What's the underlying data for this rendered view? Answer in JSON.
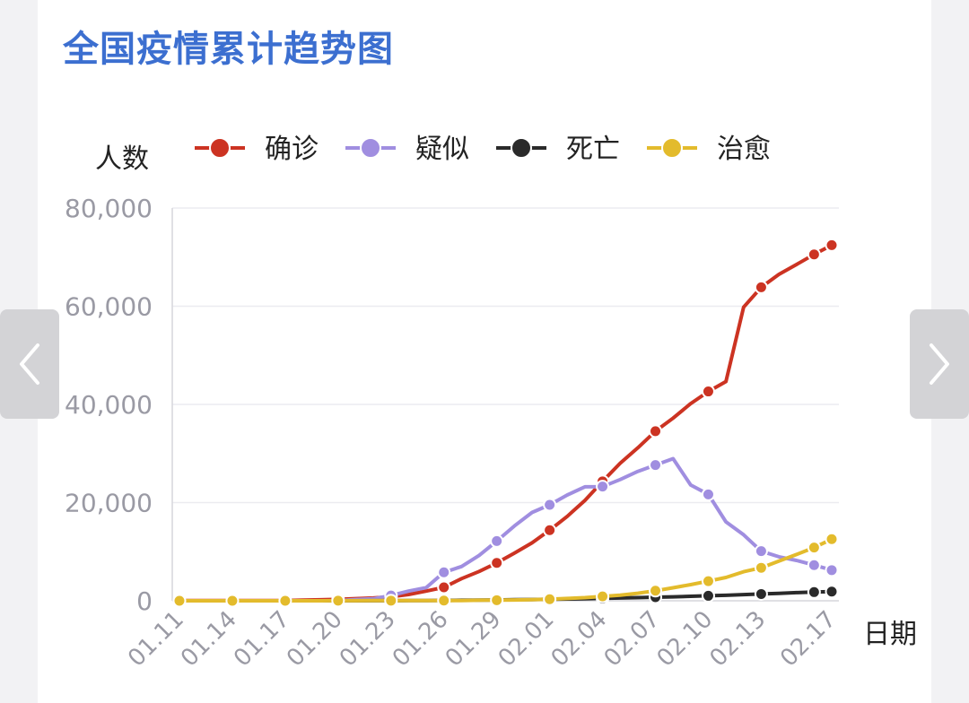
{
  "title": "全国疫情累计趋势图",
  "nav": {
    "prev_icon": "chevron-left-icon",
    "next_icon": "chevron-right-icon"
  },
  "chart_data": {
    "type": "line",
    "title": "全国疫情累计趋势图",
    "ylabel": "人数",
    "xlabel": "日期",
    "ylim": [
      0,
      80000
    ],
    "yticks": [
      0,
      20000,
      40000,
      60000,
      80000
    ],
    "ytick_labels": [
      "0",
      "20,000",
      "40,000",
      "60,000",
      "80,000"
    ],
    "xtick_labels": [
      "01.11",
      "01.14",
      "01.17",
      "01.20",
      "01.23",
      "01.26",
      "01.29",
      "02.01",
      "02.04",
      "02.07",
      "02.10",
      "02.13",
      "02.17"
    ],
    "grid": true,
    "legend_position": "top",
    "dates": [
      "01.11",
      "01.12",
      "01.13",
      "01.14",
      "01.15",
      "01.16",
      "01.17",
      "01.18",
      "01.19",
      "01.20",
      "01.21",
      "01.22",
      "01.23",
      "01.24",
      "01.25",
      "01.26",
      "01.27",
      "01.28",
      "01.29",
      "01.30",
      "01.31",
      "02.01",
      "02.02",
      "02.03",
      "02.04",
      "02.05",
      "02.06",
      "02.07",
      "02.08",
      "02.09",
      "02.10",
      "02.11",
      "02.12",
      "02.13",
      "02.14",
      "02.15",
      "02.16",
      "02.17"
    ],
    "series": [
      {
        "name": "确诊",
        "color": "#cc3322",
        "values": [
          41,
          41,
          41,
          41,
          41,
          45,
          62,
          121,
          198,
          291,
          440,
          571,
          830,
          1287,
          1975,
          2744,
          4515,
          5974,
          7711,
          9692,
          11791,
          14380,
          17205,
          20438,
          24324,
          28018,
          31161,
          34546,
          37198,
          40171,
          42638,
          44653,
          59804,
          63851,
          66492,
          68500,
          70548,
          72436
        ]
      },
      {
        "name": "疑似",
        "color": "#a08ee0",
        "values": [
          0,
          0,
          0,
          0,
          0,
          0,
          0,
          0,
          0,
          27,
          257,
          393,
          1072,
          1965,
          2684,
          5794,
          6973,
          9239,
          12167,
          15238,
          17988,
          19544,
          21558,
          23214,
          23260,
          24702,
          26359,
          27657,
          28942,
          23589,
          21675,
          16067,
          13435,
          10109,
          8969,
          8228,
          7264,
          6242
        ]
      },
      {
        "name": "死亡",
        "color": "#2a2a2a",
        "values": [
          1,
          1,
          1,
          1,
          2,
          2,
          2,
          3,
          4,
          6,
          9,
          17,
          25,
          41,
          56,
          80,
          106,
          132,
          170,
          213,
          259,
          304,
          361,
          425,
          490,
          563,
          636,
          722,
          811,
          908,
          1016,
          1113,
          1259,
          1380,
          1523,
          1665,
          1770,
          1868
        ]
      },
      {
        "name": "治愈",
        "color": "#e3bb2c",
        "values": [
          0,
          0,
          0,
          0,
          0,
          0,
          0,
          0,
          0,
          25,
          25,
          28,
          34,
          38,
          49,
          51,
          60,
          103,
          124,
          171,
          243,
          328,
          475,
          632,
          892,
          1153,
          1540,
          2050,
          2649,
          3281,
          3996,
          4740,
          5911,
          6723,
          8096,
          9419,
          10844,
          12552
        ]
      }
    ]
  }
}
